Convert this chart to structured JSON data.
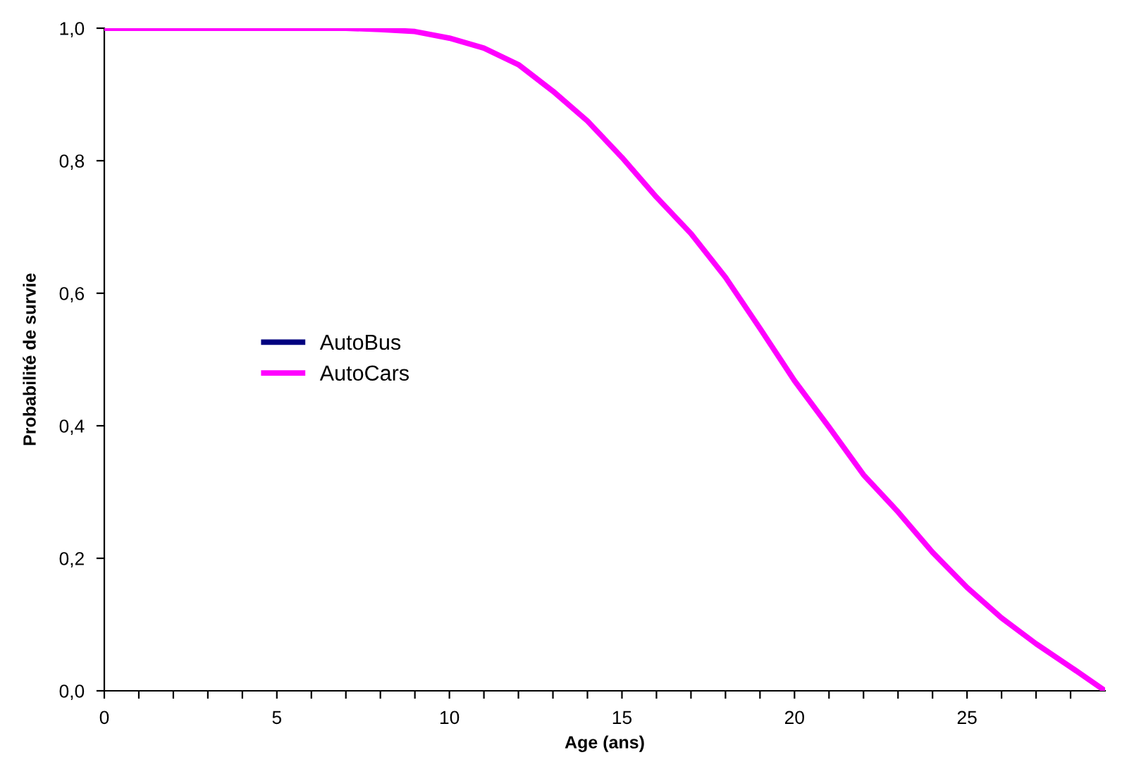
{
  "chart_data": {
    "type": "line",
    "xlabel": "Age (ans)",
    "ylabel": "Probabilité de survie",
    "x": [
      0,
      1,
      2,
      3,
      4,
      5,
      6,
      7,
      8,
      9,
      10,
      11,
      12,
      13,
      14,
      15,
      16,
      17,
      18,
      19,
      20,
      21,
      22,
      23,
      24,
      25,
      26,
      27,
      28,
      29
    ],
    "series": [
      {
        "name": "AutoBus",
        "color": "#000080",
        "values": [
          null,
          null,
          null,
          null,
          null,
          null,
          null,
          null,
          null,
          null,
          null,
          null,
          null,
          null,
          null,
          null,
          null,
          null,
          null,
          null,
          null,
          null,
          null,
          null,
          null,
          null,
          null,
          null,
          null,
          null
        ]
      },
      {
        "name": "AutoCars",
        "color": "#ff00ff",
        "values": [
          1.0,
          1.0,
          1.0,
          1.0,
          1.0,
          1.0,
          1.0,
          1.0,
          0.998,
          0.995,
          0.985,
          0.97,
          0.945,
          0.905,
          0.86,
          0.805,
          0.745,
          0.69,
          0.624,
          0.547,
          0.468,
          0.398,
          0.326,
          0.27,
          0.209,
          0.156,
          0.11,
          0.071,
          0.036,
          0.0
        ]
      }
    ],
    "xlim": [
      0,
      29
    ],
    "xticks": [
      0,
      {
        "value": 1,
        "label": null
      },
      {
        "value": 2,
        "label": null
      },
      {
        "value": 3,
        "label": null
      },
      {
        "value": 4,
        "label": null
      },
      5,
      {
        "value": 6,
        "label": null
      },
      {
        "value": 7,
        "label": null
      },
      {
        "value": 8,
        "label": null
      },
      {
        "value": 9,
        "label": null
      },
      10,
      {
        "value": 11,
        "label": null
      },
      {
        "value": 12,
        "label": null
      },
      {
        "value": 13,
        "label": null
      },
      {
        "value": 14,
        "label": null
      },
      15,
      {
        "value": 16,
        "label": null
      },
      {
        "value": 17,
        "label": null
      },
      {
        "value": 18,
        "label": null
      },
      {
        "value": 19,
        "label": null
      },
      20,
      {
        "value": 21,
        "label": null
      },
      {
        "value": 22,
        "label": null
      },
      {
        "value": 23,
        "label": null
      },
      {
        "value": 24,
        "label": null
      },
      25,
      {
        "value": 26,
        "label": null
      },
      {
        "value": 27,
        "label": null
      },
      {
        "value": 28,
        "label": null
      }
    ],
    "ylim": [
      0,
      1
    ],
    "yticks": [
      {
        "value": 0,
        "label": "0,0"
      },
      {
        "value": 0.2,
        "label": "0,2"
      },
      {
        "value": 0.4,
        "label": "0,4"
      },
      {
        "value": 0.6,
        "label": "0,6"
      },
      {
        "value": 0.8,
        "label": "0,8"
      },
      {
        "value": 1,
        "label": "1,0"
      }
    ],
    "grid": false,
    "legend": "left",
    "marker": "none",
    "line_style": "solid"
  }
}
